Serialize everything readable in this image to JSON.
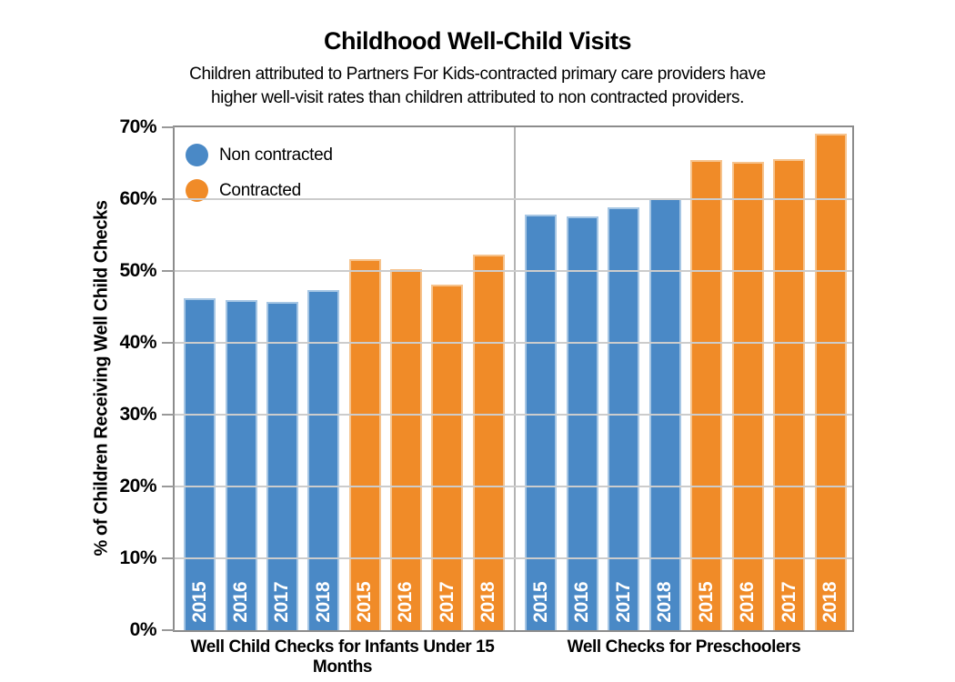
{
  "header": {
    "title": "Childhood Well-Child Visits",
    "subtitle_line1": "Children attributed to Partners For Kids-contracted primary care providers have",
    "subtitle_line2": "higher well-visit rates than children attributed to non contracted providers."
  },
  "legend": {
    "items": [
      {
        "label": "Non contracted",
        "color": "#4a89c6"
      },
      {
        "label": "Contracted",
        "color": "#f08b28"
      }
    ]
  },
  "y_axis": {
    "title": "% of Children Receiving Well Child Checks",
    "tick_labels": [
      "0%",
      "10%",
      "20%",
      "30%",
      "40%",
      "50%",
      "60%",
      "70%"
    ]
  },
  "chart_data": {
    "type": "bar",
    "title": "Childhood Well-Child Visits",
    "ylabel": "% of Children Receiving Well Child Checks",
    "ylim": [
      0,
      70
    ],
    "grid": true,
    "legend_position": "top-left",
    "colors": {
      "Non contracted": "#4a89c6",
      "Contracted": "#f08b28"
    },
    "categories": [
      "2015",
      "2016",
      "2017",
      "2018"
    ],
    "groups": [
      {
        "label": "Well Child Checks for Infants Under 15 Months",
        "series": [
          {
            "name": "Non contracted",
            "values": [
              46.2,
              45.9,
              45.7,
              47.4
            ]
          },
          {
            "name": "Contracted",
            "values": [
              51.6,
              50.3,
              48.1,
              52.3
            ]
          }
        ]
      },
      {
        "label": "Well Checks for Preschoolers",
        "series": [
          {
            "name": "Non contracted",
            "values": [
              57.8,
              57.6,
              58.9,
              60.1
            ]
          },
          {
            "name": "Contracted",
            "values": [
              65.5,
              65.2,
              65.6,
              69.1
            ]
          }
        ]
      }
    ]
  }
}
